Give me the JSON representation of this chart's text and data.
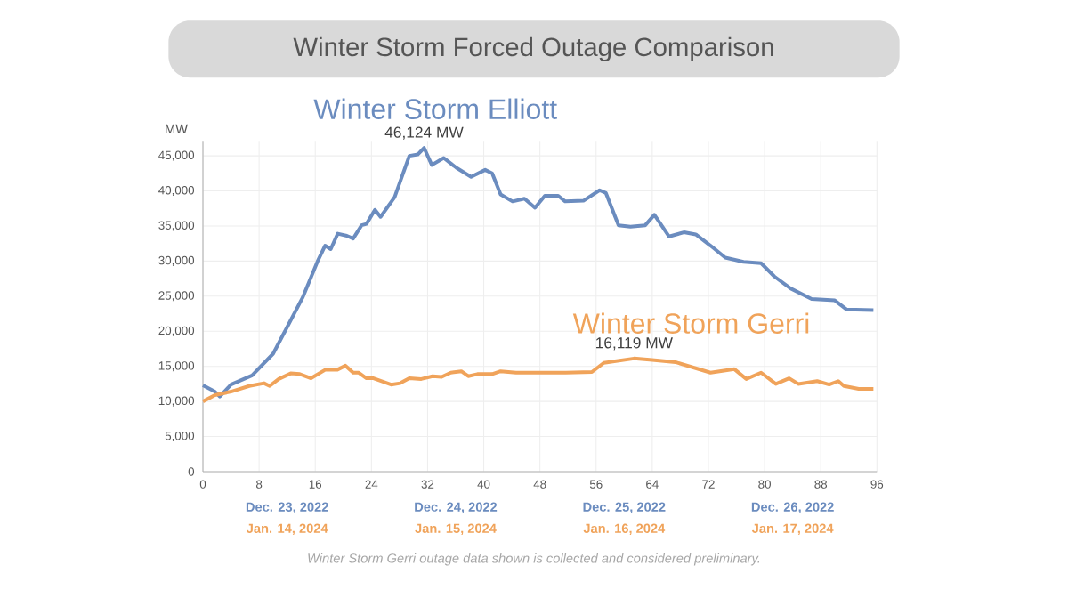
{
  "chart_data": {
    "type": "line",
    "title": "Winter Storm Forced Outage Comparison",
    "ylabel": "MW",
    "xlim": [
      0,
      96
    ],
    "xticks": [
      0,
      8,
      16,
      24,
      32,
      40,
      48,
      56,
      64,
      72,
      80,
      88,
      96
    ],
    "ylim": [
      0,
      47000
    ],
    "yticks": [
      0,
      {
        "value": 5000,
        "label": "5,000"
      },
      {
        "value": 10000,
        "label": "10,000"
      },
      {
        "value": 15000,
        "label": "15,000"
      },
      {
        "value": 20000,
        "label": "20,000"
      },
      {
        "value": 25000,
        "label": "25,000"
      },
      {
        "value": 30000,
        "label": "30,000"
      },
      {
        "value": 35000,
        "label": "35,000"
      },
      {
        "value": 40000,
        "label": "40,000"
      },
      {
        "value": 45000,
        "label": "45,000"
      }
    ],
    "grid": true,
    "legend": false,
    "marker": "none",
    "line_style": "solid",
    "series": [
      {
        "name": "Winter Storm Elliott",
        "color": "#6b8cbf",
        "x": [
          0,
          1.7,
          2.4,
          4,
          7,
          10,
          12,
          14.2,
          16.3,
          17.4,
          18.2,
          19.2,
          20.5,
          21.4,
          22.6,
          23.3,
          24.5,
          25.3,
          27.3,
          29.4,
          30.6,
          31.5,
          32.6,
          34.3,
          36.1,
          38.2,
          40.2,
          41.2,
          42.4,
          44.1,
          45.8,
          47.3,
          48.7,
          50.6,
          51.6,
          54.2,
          56.5,
          57.4,
          59.2,
          60.9,
          63,
          64.3,
          66.4,
          68.5,
          70.2,
          72.3,
          74.4,
          77,
          79.5,
          81.4,
          83.7,
          86.7,
          90,
          91.7,
          95.5
        ],
        "values": [
          12300,
          11400,
          10700,
          12400,
          13700,
          16800,
          20600,
          24800,
          29900,
          32200,
          31700,
          33900,
          33600,
          33200,
          35100,
          35300,
          37300,
          36300,
          39100,
          45000,
          45200,
          46124,
          43700,
          44700,
          43300,
          42000,
          43000,
          42500,
          39500,
          38500,
          38900,
          37600,
          39300,
          39300,
          38500,
          38600,
          40100,
          39700,
          35100,
          34900,
          35100,
          36600,
          33500,
          34100,
          33800,
          32200,
          30500,
          29900,
          29700,
          27800,
          26100,
          24600,
          24400,
          23100,
          23000
        ]
      },
      {
        "name": "Winter Storm Gerri",
        "color": "#f0a35a",
        "x": [
          0,
          1.7,
          4,
          6.6,
          8.7,
          9.5,
          10.8,
          12.5,
          13.8,
          15.4,
          17.4,
          19.1,
          20.3,
          21.4,
          22.2,
          23.3,
          24.3,
          26.8,
          28.1,
          29.4,
          31.1,
          32.7,
          34,
          35.3,
          36.8,
          37.8,
          39.1,
          41.2,
          42.4,
          44.6,
          47.1,
          51.7,
          55.4,
          57.1,
          61.4,
          64,
          67.3,
          72.3,
          75.7,
          77.4,
          79.5,
          81.6,
          83.5,
          84.8,
          87.5,
          89.2,
          90.5,
          91.3,
          93.4,
          95.5
        ],
        "values": [
          10000,
          10900,
          11400,
          12200,
          12600,
          12200,
          13200,
          14000,
          13900,
          13300,
          14500,
          14500,
          15100,
          14100,
          14100,
          13300,
          13300,
          12400,
          12600,
          13300,
          13200,
          13600,
          13500,
          14100,
          14300,
          13600,
          13900,
          13900,
          14300,
          14100,
          14100,
          14100,
          14200,
          15500,
          16119,
          15900,
          15600,
          14100,
          14600,
          13200,
          14100,
          12500,
          13300,
          12500,
          12900,
          12400,
          12900,
          12200,
          11800,
          11800
        ]
      }
    ],
    "annotations": [
      {
        "text": "46,124 MW",
        "x": 31.5,
        "y": 46124
      },
      {
        "text": "16,119 MW",
        "x": 61.4,
        "y": 16119
      },
      "Dec. 23, 2022",
      "Jan. 14, 2024",
      "Dec. 24, 2022",
      "Jan. 15, 2024",
      "Dec. 25, 2022",
      "Jan. 16, 2024",
      "Dec. 26, 2022",
      "Jan. 17, 2024",
      "Winter Storm Gerri outage data shown is collected and considered preliminary."
    ]
  }
}
